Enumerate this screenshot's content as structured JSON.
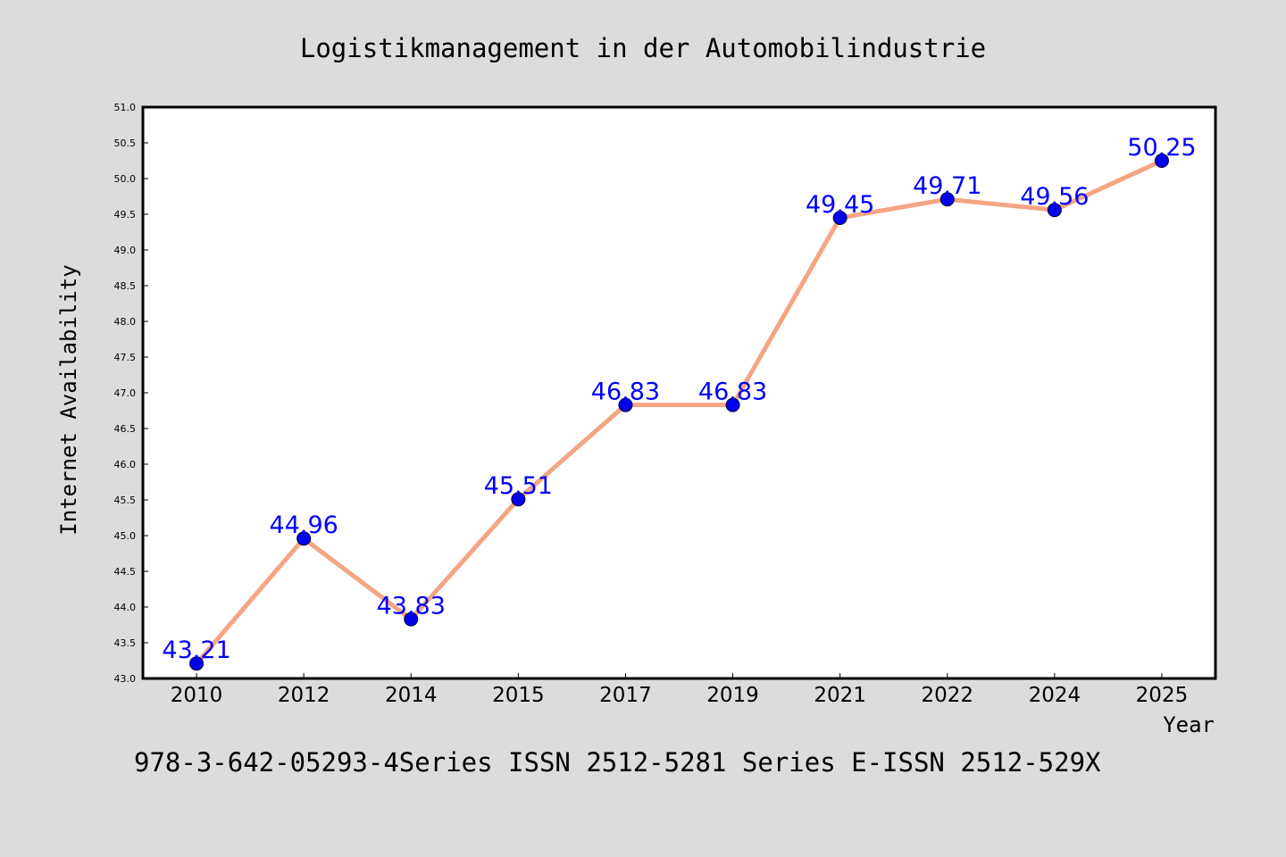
{
  "chart_data": {
    "type": "line",
    "title": "Logistikmanagement in der Automobilindustrie",
    "xlabel": "Year",
    "ylabel": "Internet Availability",
    "categories": [
      "2010",
      "2012",
      "2014",
      "2015",
      "2017",
      "2019",
      "2021",
      "2022",
      "2024",
      "2025"
    ],
    "series": [
      {
        "values": [
          43.21,
          44.96,
          43.83,
          45.51,
          46.83,
          46.83,
          49.45,
          49.71,
          49.56,
          50.25
        ],
        "labels": [
          "43.21",
          "44.96",
          "43.83",
          "45.51",
          "46.83",
          "46.83",
          "49.45",
          "49.71",
          "49.56",
          "50.25"
        ]
      }
    ],
    "ylim": [
      43.0,
      51.0
    ],
    "yticks": [
      "43.0",
      "43.5",
      "44.0",
      "44.5",
      "45.0",
      "45.5",
      "46.0",
      "46.5",
      "47.0",
      "47.5",
      "48.0",
      "48.5",
      "49.0",
      "49.5",
      "50.0",
      "50.5",
      "51.0"
    ],
    "grid": false,
    "legend": "none",
    "colors": {
      "line": "#f4a582",
      "marker": "#0000ee",
      "data_label": "#0000ff",
      "background": "#dcdcdc",
      "plot_background": "#ffffff"
    }
  },
  "footer_text": "978-3-642-05293-4Series ISSN 2512-5281 Series E-ISSN 2512-529X"
}
